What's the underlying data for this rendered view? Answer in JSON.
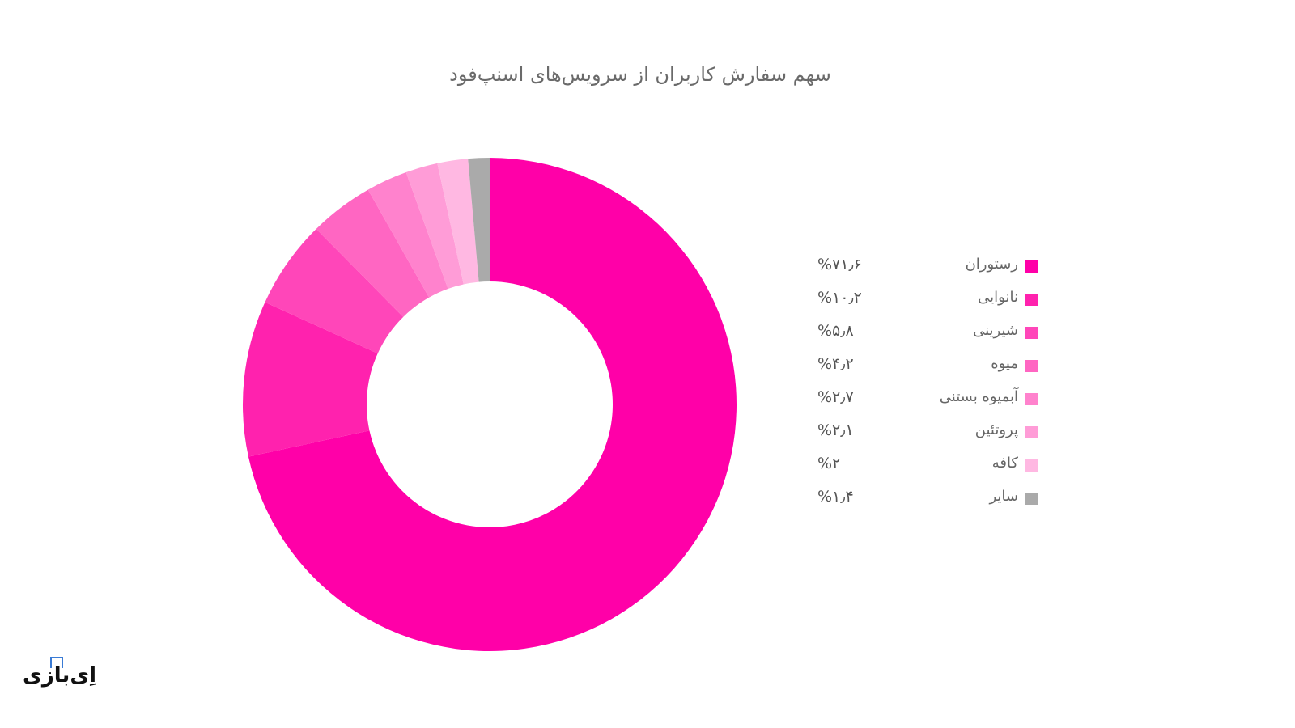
{
  "chart_data": {
    "type": "pie",
    "variant": "donut",
    "title": "سهم سفارش کاربران از سرویس‌های اسنپ‌فود",
    "categories": [
      "رستوران",
      "نانوایی",
      "شیرینی",
      "میوه",
      "آبمیوه بستنی",
      "پروتئین",
      "کافه",
      "سایر"
    ],
    "values": [
      71.6,
      10.2,
      5.8,
      4.2,
      2.7,
      2.1,
      2.0,
      1.4
    ],
    "value_labels": [
      "%۷۱٫۶",
      "%۱۰٫۲",
      "%۵٫۸",
      "%۴٫۲",
      "%۲٫۷",
      "%۲٫۱",
      "%۲",
      "%۱٫۴"
    ],
    "colors": [
      "#ff00a8",
      "#ff22ae",
      "#ff46b9",
      "#ff66c2",
      "#ff82cd",
      "#ff9cd7",
      "#ffb8e2",
      "#aaaaaa"
    ],
    "unit": "%",
    "legend_position": "right",
    "start_angle_deg": 0,
    "direction": "clockwise"
  },
  "legend": {
    "items": [
      {
        "label": "رستوران",
        "value": "%۷۱٫۶",
        "color": "#ff00a8"
      },
      {
        "label": "نانوایی",
        "value": "%۱۰٫۲",
        "color": "#ff22ae"
      },
      {
        "label": "شیرینی",
        "value": "%۵٫۸",
        "color": "#ff46b9"
      },
      {
        "label": "میوه",
        "value": "%۴٫۲",
        "color": "#ff66c2"
      },
      {
        "label": "آبمیوه بستنی",
        "value": "%۲٫۷",
        "color": "#ff82cd"
      },
      {
        "label": "پروتئین",
        "value": "%۲٫۱",
        "color": "#ff9cd7"
      },
      {
        "label": "کافه",
        "value": "%۲",
        "color": "#ffb8e2"
      },
      {
        "label": "سایر",
        "value": "%۱٫۴",
        "color": "#aaaaaa"
      }
    ]
  },
  "logo": {
    "text": "اِی‌بازی"
  }
}
